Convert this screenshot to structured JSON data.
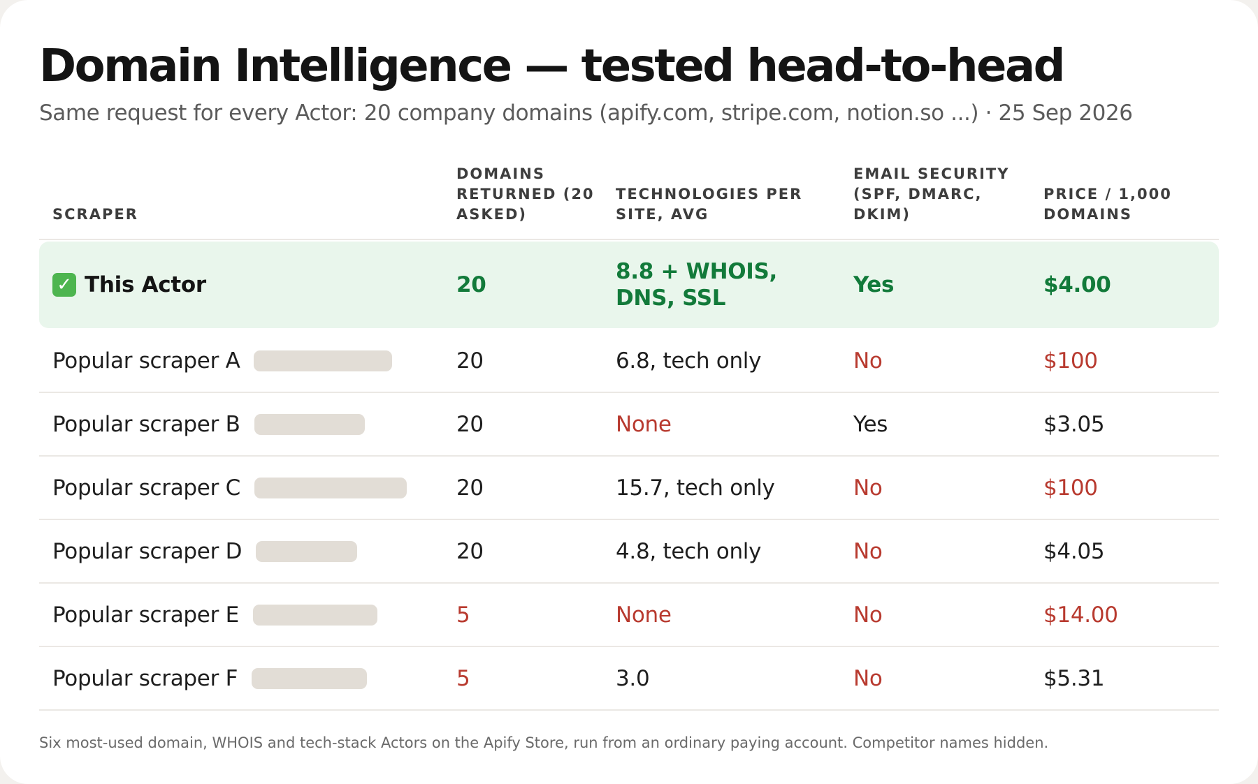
{
  "title": "Domain Intelligence — tested head-to-head",
  "subtitle": "Same request for every Actor: 20 company domains (apify.com, stripe.com, notion.so ...) · 25 Sep 2026",
  "colors": {
    "highlight_bg": "#e9f6ec",
    "good": "#127a3a",
    "bad": "#b83a2f",
    "redaction": "#e2ddd6"
  },
  "table": {
    "headers": {
      "scraper": "SCRAPER",
      "domains": "DOMAINS RETURNED (20 ASKED)",
      "tech": "TECHNOLOGIES PER SITE, AVG",
      "email": "EMAIL SECURITY (SPF, DMARC, DKIM)",
      "price": "PRICE / 1,000 DOMAINS"
    },
    "featured": {
      "icon": "check-mark-icon",
      "name": "This Actor",
      "domains": "20",
      "tech": "8.8 + WHOIS, DNS, SSL",
      "email": "Yes",
      "price": "$4.00"
    },
    "rows": [
      {
        "name": "Popular scraper A",
        "domains": "20",
        "domains_bad": false,
        "tech": "6.8, tech only",
        "tech_bad": false,
        "email": "No",
        "email_bad": true,
        "price": "$100",
        "price_bad": true
      },
      {
        "name": "Popular scraper B",
        "domains": "20",
        "domains_bad": false,
        "tech": "None",
        "tech_bad": true,
        "email": "Yes",
        "email_bad": false,
        "price": "$3.05",
        "price_bad": false
      },
      {
        "name": "Popular scraper C",
        "domains": "20",
        "domains_bad": false,
        "tech": "15.7, tech only",
        "tech_bad": false,
        "email": "No",
        "email_bad": true,
        "price": "$100",
        "price_bad": true
      },
      {
        "name": "Popular scraper D",
        "domains": "20",
        "domains_bad": false,
        "tech": "4.8, tech only",
        "tech_bad": false,
        "email": "No",
        "email_bad": true,
        "price": "$4.05",
        "price_bad": false
      },
      {
        "name": "Popular scraper E",
        "domains": "5",
        "domains_bad": true,
        "tech": "None",
        "tech_bad": true,
        "email": "No",
        "email_bad": true,
        "price": "$14.00",
        "price_bad": true
      },
      {
        "name": "Popular scraper F",
        "domains": "5",
        "domains_bad": true,
        "tech": "3.0",
        "tech_bad": false,
        "email": "No",
        "email_bad": true,
        "price": "$5.31",
        "price_bad": false
      }
    ]
  },
  "footnote": "Six most-used domain, WHOIS and tech-stack Actors on the Apify Store, run from an ordinary paying account. Competitor names hidden."
}
